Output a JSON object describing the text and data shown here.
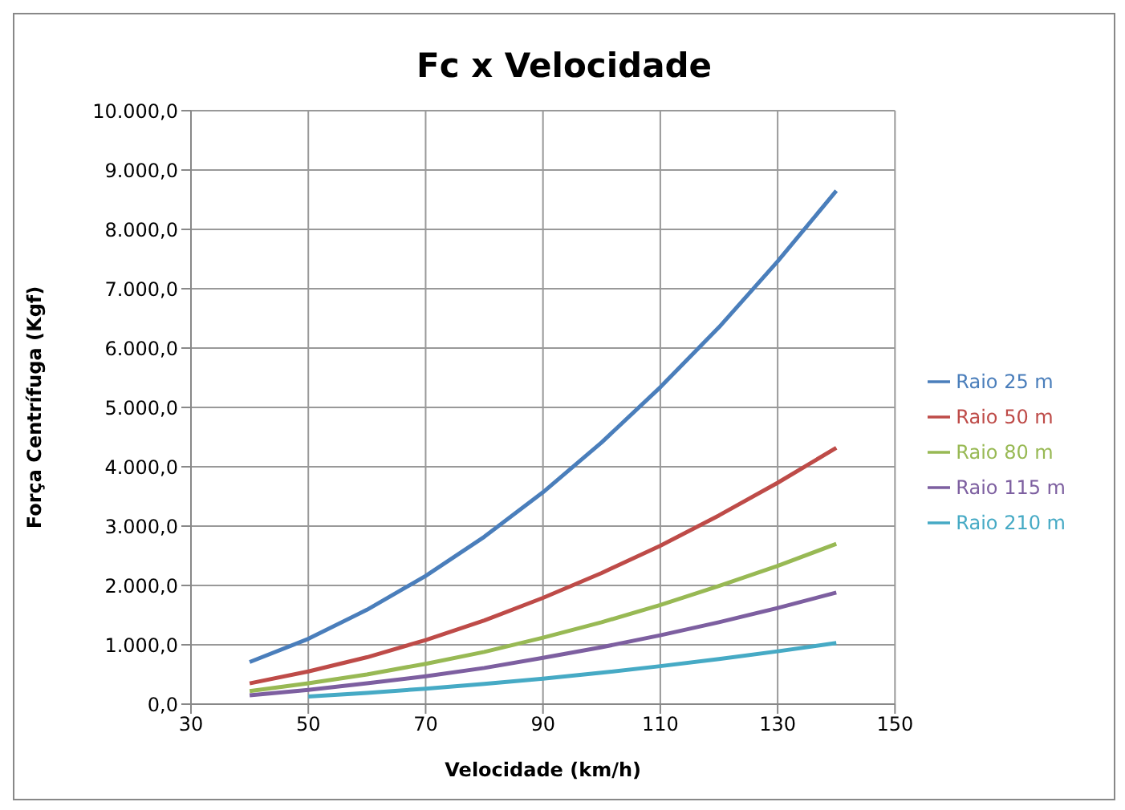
{
  "chart_data": {
    "type": "line",
    "title": "Fc x Velocidade",
    "xlabel": "Velocidade (km/h)",
    "ylabel": "Força Centrífuga (Kgf)",
    "x": [
      40,
      50,
      60,
      70,
      80,
      90,
      100,
      110,
      120,
      130,
      140
    ],
    "series": [
      {
        "name": "Raio 25 m",
        "color": "#4a7ebb",
        "values": [
          710,
          1100,
          1590,
          2160,
          2820,
          3570,
          4410,
          5340,
          6350,
          7460,
          8650
        ]
      },
      {
        "name": "Raio 50 m",
        "color": "#be4b48",
        "values": [
          350,
          550,
          790,
          1080,
          1410,
          1790,
          2210,
          2670,
          3180,
          3730,
          4320
        ]
      },
      {
        "name": "Raio 80 m",
        "color": "#98b954",
        "values": [
          220,
          350,
          500,
          680,
          880,
          1120,
          1380,
          1670,
          1990,
          2330,
          2700
        ]
      },
      {
        "name": "Raio 115 m",
        "color": "#7d5fa0",
        "values": [
          150,
          240,
          350,
          470,
          610,
          780,
          960,
          1160,
          1380,
          1620,
          1880
        ]
      },
      {
        "name": "Raio 210 m",
        "color": "#46aac5",
        "values": [
          null,
          130,
          190,
          260,
          340,
          430,
          530,
          640,
          760,
          890,
          1030
        ]
      }
    ],
    "xlim": [
      30,
      150
    ],
    "xticks": [
      30,
      50,
      70,
      90,
      110,
      130,
      150
    ],
    "ylim": [
      0,
      10000
    ],
    "yticks": [
      {
        "value": 0,
        "label": "0,0"
      },
      {
        "value": 1000,
        "label": "1.000,0"
      },
      {
        "value": 2000,
        "label": "2.000,0"
      },
      {
        "value": 3000,
        "label": "3.000,0"
      },
      {
        "value": 4000,
        "label": "4.000,0"
      },
      {
        "value": 5000,
        "label": "5.000,0"
      },
      {
        "value": 6000,
        "label": "6.000,0"
      },
      {
        "value": 7000,
        "label": "7.000,0"
      },
      {
        "value": 8000,
        "label": "8.000,0"
      },
      {
        "value": 9000,
        "label": "9.000,0"
      },
      {
        "value": 10000,
        "label": "10.000,0"
      }
    ],
    "grid": true,
    "legend": "right",
    "marker": "none",
    "line_style": "solid"
  }
}
